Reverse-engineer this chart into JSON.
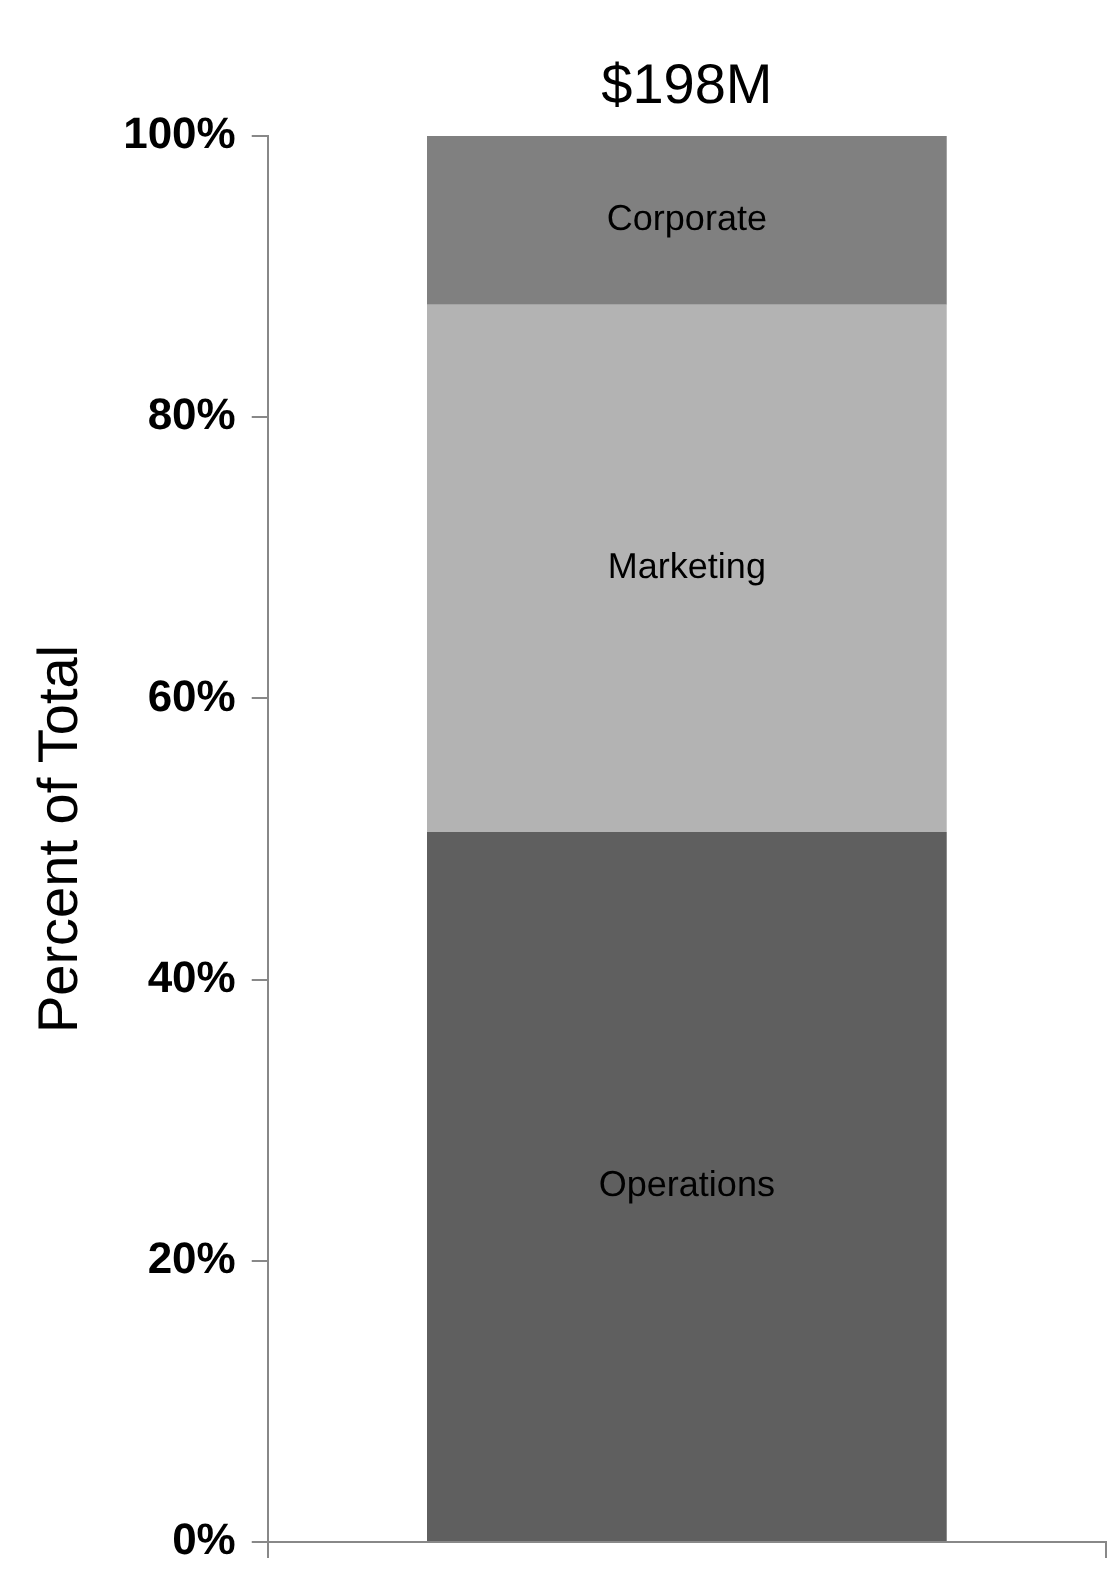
{
  "chart_data": {
    "type": "bar",
    "stacked": true,
    "categories": [
      null
    ],
    "series": [
      {
        "name": "Operations",
        "color": "#5f5f5f",
        "values": [
          50.5
        ]
      },
      {
        "name": "Marketing",
        "color": "#b3b3b3",
        "values": [
          37.5
        ]
      },
      {
        "name": "Corporate",
        "color": "#808080",
        "values": [
          12
        ]
      }
    ],
    "ylabel": "Percent of Total",
    "ylim": [
      0,
      100
    ],
    "yticks": [
      {
        "value": 0,
        "label": "0%"
      },
      {
        "value": 20,
        "label": "20%"
      },
      {
        "value": 40,
        "label": "40%"
      },
      {
        "value": 60,
        "label": "60%"
      },
      {
        "value": 80,
        "label": "80%"
      },
      {
        "value": 100,
        "label": "100%"
      }
    ],
    "annotations": [
      "$198M"
    ],
    "grid": false,
    "legend": false
  }
}
